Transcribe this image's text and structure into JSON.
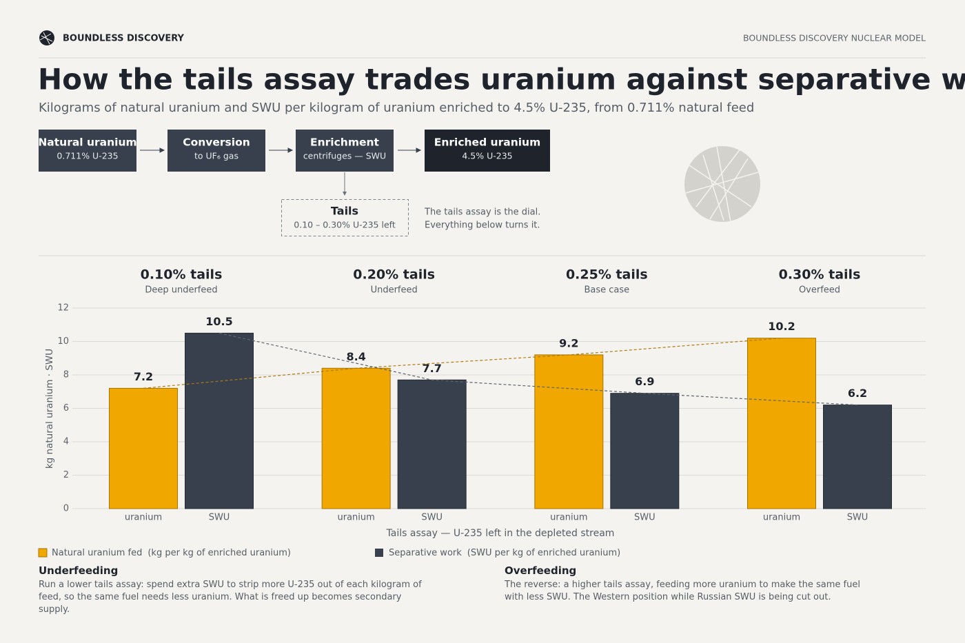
{
  "header": {
    "brand": "BOUNDLESS DISCOVERY",
    "model": "BOUNDLESS DISCOVERY NUCLEAR MODEL"
  },
  "title": "How the tails assay trades uranium against separative work",
  "subtitle": "Kilograms of natural uranium and SWU per kilogram of uranium enriched to 4.5% U-235, from 0.711% natural feed",
  "flow": {
    "steps": [
      {
        "label": "Natural uranium",
        "detail": "0.711% U-235"
      },
      {
        "label": "Conversion",
        "detail": "to UF₆ gas"
      },
      {
        "label": "Enrichment",
        "detail": "centrifuges — SWU"
      },
      {
        "label": "Enriched uranium",
        "detail": "4.5% U-235"
      }
    ],
    "tails": {
      "label": "Tails",
      "detail": "0.10 – 0.30% U-235 left"
    },
    "note": [
      "The tails assay is the dial.",
      "Everything below turns it."
    ]
  },
  "chart_data": {
    "type": "bar",
    "categories": [
      "0.10% tails",
      "0.20% tails",
      "0.25% tails",
      "0.30% tails"
    ],
    "category_notes": [
      "Deep underfeed",
      "Underfeed",
      "Base case",
      "Overfeed"
    ],
    "series": [
      {
        "name": "Natural uranium fed",
        "note": "(kg per kg of enriched uranium)",
        "short": "uranium",
        "color": "#f0a800",
        "values": [
          7.2,
          8.4,
          9.2,
          10.2
        ]
      },
      {
        "name": "Separative work",
        "note": "(SWU per kg of enriched uranium)",
        "short": "SWU",
        "color": "#37404c",
        "values": [
          10.5,
          7.7,
          6.9,
          6.2
        ]
      }
    ],
    "ylabel": "kg natural uranium  ·  SWU",
    "xlabel": "Tails assay — U-235 left in the depleted stream",
    "ylim": [
      0,
      12
    ],
    "yticks": [
      0,
      2,
      4,
      6,
      8,
      10,
      12
    ],
    "grid": true,
    "trend_lines": true
  },
  "notes": [
    {
      "title": "Underfeeding",
      "text": "Run a lower tails assay: spend extra SWU to strip more U-235 out of each kilogram of feed, so the same fuel needs less uranium. What is freed up becomes secondary supply."
    },
    {
      "title": "Overfeeding",
      "text": "The reverse: a higher tails assay, feeding more uranium to make the same fuel with less SWU. The Western position while Russian SWU is being cut out."
    }
  ]
}
